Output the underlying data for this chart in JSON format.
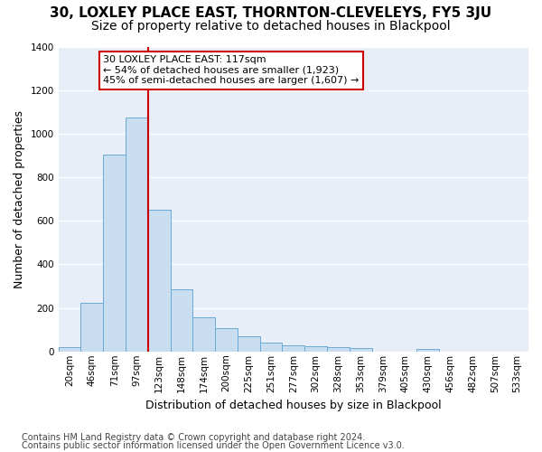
{
  "title": "30, LOXLEY PLACE EAST, THORNTON-CLEVELEYS, FY5 3JU",
  "subtitle": "Size of property relative to detached houses in Blackpool",
  "xlabel": "Distribution of detached houses by size in Blackpool",
  "ylabel": "Number of detached properties",
  "bar_color": "#c9ddf0",
  "bar_edge_color": "#6aaad4",
  "plot_bg_color": "#e8eef8",
  "fig_bg_color": "#ffffff",
  "grid_color": "#ffffff",
  "categories": [
    "20sqm",
    "46sqm",
    "71sqm",
    "97sqm",
    "123sqm",
    "148sqm",
    "174sqm",
    "200sqm",
    "225sqm",
    "251sqm",
    "277sqm",
    "302sqm",
    "328sqm",
    "353sqm",
    "379sqm",
    "405sqm",
    "430sqm",
    "456sqm",
    "482sqm",
    "507sqm",
    "533sqm"
  ],
  "values": [
    20,
    225,
    905,
    1075,
    650,
    285,
    155,
    105,
    70,
    40,
    27,
    22,
    20,
    15,
    0,
    0,
    10,
    0,
    0,
    0,
    0
  ],
  "ylim": [
    0,
    1400
  ],
  "yticks": [
    0,
    200,
    400,
    600,
    800,
    1000,
    1200,
    1400
  ],
  "vline_x": 3.5,
  "vline_color": "#cc0000",
  "annotation_text": "30 LOXLEY PLACE EAST: 117sqm\n← 54% of detached houses are smaller (1,923)\n45% of semi-detached houses are larger (1,607) →",
  "annotation_box_facecolor": "#ffffff",
  "annotation_box_edgecolor": "#cc0000",
  "footer1": "Contains HM Land Registry data © Crown copyright and database right 2024.",
  "footer2": "Contains public sector information licensed under the Open Government Licence v3.0.",
  "title_fontsize": 11,
  "subtitle_fontsize": 10,
  "axis_label_fontsize": 9,
  "tick_fontsize": 7.5,
  "annotation_fontsize": 8,
  "footer_fontsize": 7
}
